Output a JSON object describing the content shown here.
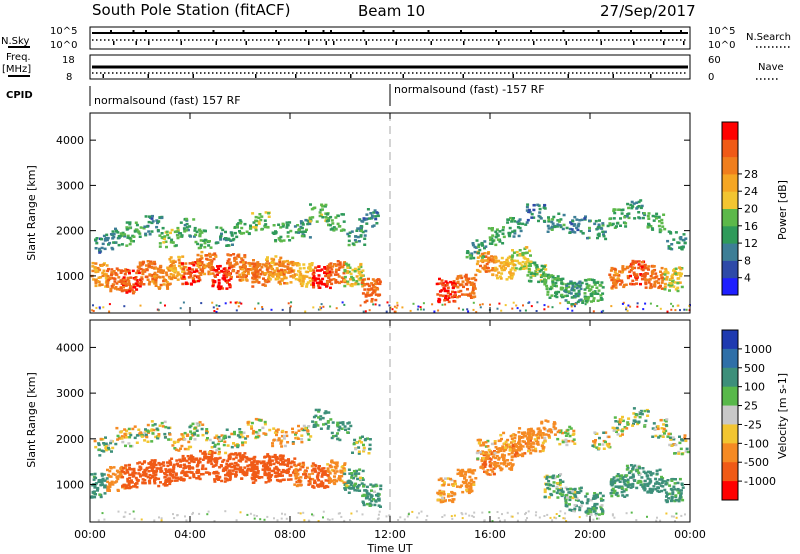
{
  "header": {
    "station": "South Pole Station (fitACF)",
    "beam": "Beam 10",
    "date": "27/Sep/2017"
  },
  "aux_panels": {
    "nsky_label": "N.Sky",
    "nsearch_label": "N.Search",
    "freq_label_line1": "Freq.",
    "freq_label_line2": "[MHz]",
    "nave_label": "Nave",
    "cpid_label": "CPID",
    "nsky_ticks": [
      "10^5",
      "10^0"
    ],
    "nsearch_ticks": [
      "10^5",
      "10^0"
    ],
    "freq_ticks": [
      "18",
      "8"
    ],
    "nave_ticks": [
      "60",
      "0"
    ],
    "cpid_segments": [
      {
        "label": "normalsound (fast) 157 RF",
        "start_hour": 0
      },
      {
        "label": "normalsound (fast) -157 RF",
        "start_hour": 12
      }
    ]
  },
  "axes": {
    "x_label": "Time UT",
    "y_label": "Slant Range [km]",
    "x_ticks": [
      "00:00",
      "04:00",
      "08:00",
      "12:00",
      "16:00",
      "20:00",
      "00:00"
    ],
    "y_ticks": [
      "1000",
      "2000",
      "3000",
      "4000"
    ]
  },
  "colorbars": {
    "power": {
      "label": "Power [dB]",
      "ticks": [
        "4",
        "8",
        "12",
        "16",
        "20",
        "24",
        "28"
      ],
      "colors": [
        "#1f1fff",
        "#2e4aa8",
        "#3d7e96",
        "#2f9a5a",
        "#5cb84a",
        "#f2c531",
        "#f5a623",
        "#f07e1c",
        "#f05a16",
        "#ff0000"
      ]
    },
    "velocity": {
      "label": "Velocity [m s-1]",
      "ticks": [
        "1000",
        "500",
        "100",
        "25",
        "-25",
        "-100",
        "-500",
        "-1000"
      ],
      "colors": [
        "#1f3ab0",
        "#2f6fa8",
        "#3d8f7a",
        "#58b84a",
        "#c8c8c8",
        "#f2c531",
        "#f58a23",
        "#f05a16",
        "#ff0000"
      ]
    }
  },
  "chart_data": {
    "type": "heatmap",
    "x_range_hours": [
      0,
      24
    ],
    "y_range_km": [
      180,
      4600
    ],
    "power_series": [
      {
        "band": "near",
        "points": [
          [
            0.3,
            1050,
            20
          ],
          [
            1,
            950,
            24
          ],
          [
            1.6,
            900,
            26
          ],
          [
            2.2,
            1100,
            24
          ],
          [
            2.8,
            1000,
            22
          ],
          [
            3.4,
            1200,
            20
          ],
          [
            4,
            1100,
            26
          ],
          [
            4.6,
            1300,
            22
          ],
          [
            5.2,
            1000,
            28
          ],
          [
            5.8,
            1250,
            24
          ],
          [
            6.3,
            1150,
            22
          ],
          [
            6.8,
            1050,
            24
          ],
          [
            7.3,
            1200,
            20
          ],
          [
            7.8,
            1100,
            22
          ],
          [
            8.5,
            1050,
            18
          ],
          [
            9.2,
            1000,
            28
          ],
          [
            9.8,
            1100,
            24
          ],
          [
            10.5,
            1050,
            16
          ],
          [
            11.2,
            700,
            24
          ],
          [
            14.2,
            700,
            28
          ],
          [
            15,
            800,
            24
          ],
          [
            15.8,
            1300,
            22
          ],
          [
            16.5,
            1200,
            18
          ],
          [
            17.2,
            1400,
            16
          ],
          [
            17.8,
            1100,
            14
          ],
          [
            18.5,
            800,
            12
          ],
          [
            19.3,
            650,
            10
          ],
          [
            20.1,
            700,
            12
          ],
          [
            21.1,
            1000,
            22
          ],
          [
            21.8,
            1100,
            26
          ],
          [
            22.5,
            1000,
            24
          ],
          [
            23.3,
            950,
            16
          ]
        ]
      },
      {
        "band": "far",
        "points": [
          [
            0.5,
            1750,
            8
          ],
          [
            1.2,
            1900,
            10
          ],
          [
            1.8,
            2000,
            12
          ],
          [
            2.5,
            2150,
            8
          ],
          [
            3.1,
            1850,
            14
          ],
          [
            3.8,
            2100,
            10
          ],
          [
            4.5,
            1850,
            12
          ],
          [
            5.3,
            1900,
            10
          ],
          [
            6,
            2050,
            12
          ],
          [
            6.8,
            2250,
            14
          ],
          [
            7.6,
            2000,
            12
          ],
          [
            8.4,
            2050,
            10
          ],
          [
            9.1,
            2400,
            14
          ],
          [
            9.8,
            2200,
            12
          ],
          [
            10.6,
            1900,
            10
          ],
          [
            11.1,
            2300,
            8
          ],
          [
            15.4,
            1600,
            10
          ],
          [
            16.2,
            1900,
            12
          ],
          [
            17,
            2100,
            10
          ],
          [
            17.8,
            2400,
            8
          ],
          [
            18.6,
            2200,
            10
          ],
          [
            19.4,
            2150,
            8
          ],
          [
            20.2,
            2050,
            10
          ],
          [
            21,
            2300,
            12
          ],
          [
            21.8,
            2500,
            10
          ],
          [
            22.6,
            2200,
            12
          ],
          [
            23.4,
            1800,
            10
          ]
        ]
      }
    ],
    "velocity_series": [
      {
        "band": "near",
        "points": [
          [
            0.3,
            1000,
            150
          ],
          [
            1,
            1150,
            -200
          ],
          [
            1.6,
            1200,
            -400
          ],
          [
            2.2,
            1300,
            -500
          ],
          [
            2.8,
            1250,
            -450
          ],
          [
            3.4,
            1350,
            -500
          ],
          [
            4,
            1400,
            -550
          ],
          [
            4.6,
            1500,
            -500
          ],
          [
            5.2,
            1350,
            -600
          ],
          [
            5.8,
            1450,
            -500
          ],
          [
            6.3,
            1400,
            -450
          ],
          [
            6.8,
            1300,
            -500
          ],
          [
            7.3,
            1450,
            -400
          ],
          [
            7.8,
            1350,
            -450
          ],
          [
            8.5,
            1250,
            -300
          ],
          [
            9.2,
            1200,
            -400
          ],
          [
            9.8,
            1300,
            -150
          ],
          [
            10.5,
            1100,
            80
          ],
          [
            11.2,
            800,
            100
          ],
          [
            14.2,
            900,
            -80
          ],
          [
            15,
            1100,
            -150
          ],
          [
            15.8,
            1500,
            -300
          ],
          [
            16.5,
            1600,
            -200
          ],
          [
            17.2,
            1900,
            -250
          ],
          [
            17.8,
            2000,
            -150
          ],
          [
            18.5,
            1000,
            50
          ],
          [
            19.3,
            700,
            80
          ],
          [
            20.1,
            600,
            100
          ],
          [
            21.1,
            1000,
            120
          ],
          [
            21.8,
            1200,
            80
          ],
          [
            22.5,
            1100,
            150
          ],
          [
            23.3,
            900,
            120
          ]
        ]
      },
      {
        "band": "far",
        "points": [
          [
            0.5,
            1850,
            30
          ],
          [
            1.3,
            2050,
            -30
          ],
          [
            2.1,
            2150,
            0
          ],
          [
            2.8,
            2200,
            10
          ],
          [
            3.6,
            1950,
            -40
          ],
          [
            4.3,
            2200,
            20
          ],
          [
            5,
            1900,
            -20
          ],
          [
            5.8,
            2050,
            10
          ],
          [
            6.6,
            2250,
            -50
          ],
          [
            7.5,
            2050,
            -80
          ],
          [
            8.4,
            2100,
            -30
          ],
          [
            9.2,
            2450,
            120
          ],
          [
            10,
            2200,
            80
          ],
          [
            10.8,
            1900,
            40
          ],
          [
            15.8,
            1800,
            -60
          ],
          [
            16.6,
            1950,
            -120
          ],
          [
            17.4,
            2050,
            -150
          ],
          [
            18.2,
            2250,
            -100
          ],
          [
            19,
            2100,
            -40
          ],
          [
            20.4,
            2000,
            -30
          ],
          [
            21.2,
            2300,
            20
          ],
          [
            22,
            2500,
            30
          ],
          [
            22.8,
            2250,
            10
          ],
          [
            23.5,
            1900,
            20
          ]
        ]
      }
    ],
    "nsky_markers": [
      0.8,
      1.7,
      2.2,
      3.5,
      4.9,
      6.1,
      7.4,
      8.6,
      9.3,
      9.6,
      10.9,
      12.1,
      13.5,
      14.8,
      16.2,
      17.6,
      18.9,
      20.3,
      21.6,
      22.8,
      23.6
    ],
    "nave_markers": [
      0.5,
      2.3,
      4.1,
      6.6,
      8.2,
      10.4,
      12.5,
      14.9,
      16.9,
      19.1,
      20.9,
      22.4
    ]
  }
}
